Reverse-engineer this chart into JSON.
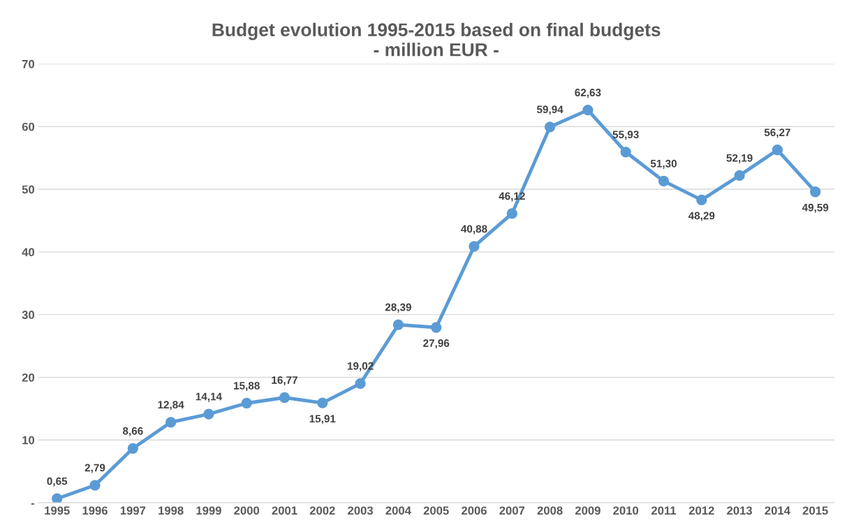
{
  "chart_data": {
    "type": "line",
    "title": "Budget evolution 1995-2015 based on final budgets\n- million EUR -",
    "categories": [
      "1995",
      "1996",
      "1997",
      "1998",
      "1999",
      "2000",
      "2001",
      "2002",
      "2003",
      "2004",
      "2005",
      "2006",
      "2007",
      "2008",
      "2009",
      "2010",
      "2011",
      "2012",
      "2013",
      "2014",
      "2015"
    ],
    "values": [
      0.65,
      2.79,
      8.66,
      12.84,
      14.14,
      15.88,
      16.77,
      15.91,
      19.02,
      28.39,
      27.96,
      40.88,
      46.12,
      59.94,
      62.63,
      55.93,
      51.3,
      48.29,
      52.19,
      56.27,
      49.59
    ],
    "value_labels": [
      "0,65",
      "2,79",
      "8,66",
      "12,84",
      "14,14",
      "15,88",
      "16,77",
      "15,91",
      "19,02",
      "28,39",
      "27,96",
      "40,88",
      "46,12",
      "59,94",
      "62,63",
      "55,93",
      "51,30",
      "48,29",
      "52,19",
      "56,27",
      "49,59"
    ],
    "color": "#5b9bd5",
    "marker": "circle",
    "line_style": "solid",
    "ylim": [
      0,
      70
    ],
    "yticks": [
      {
        "value": 0,
        "label": "-"
      },
      10,
      20,
      30,
      40,
      50,
      60,
      70
    ],
    "grid": "y",
    "legend": false
  }
}
